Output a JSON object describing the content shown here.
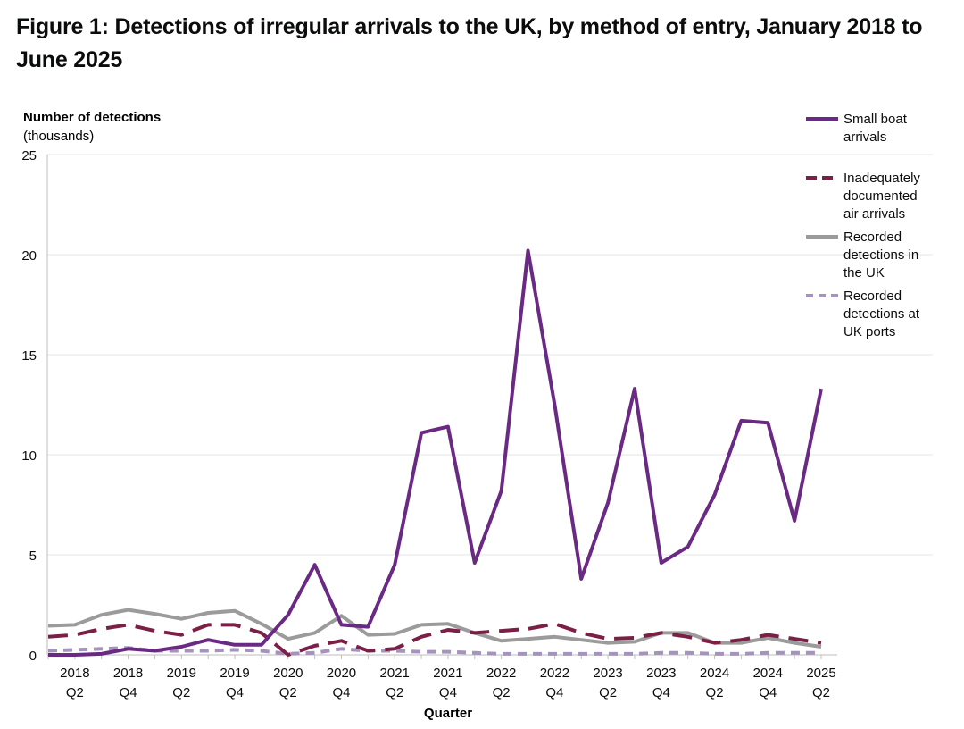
{
  "title": "Figure 1: Detections of irregular arrivals to the UK, by method of entry, January 2018 to June 2025",
  "chart_data": {
    "type": "line",
    "ylabel": "Number of detections",
    "ylabel_sub": "(thousands)",
    "xlabel": "Quarter",
    "ylim": [
      0,
      25
    ],
    "yticks": [
      0,
      5,
      10,
      15,
      20,
      25
    ],
    "grid": "horizontal",
    "legend_position": "right",
    "x": [
      "2018 Q1",
      "2018 Q2",
      "2018 Q3",
      "2018 Q4",
      "2019 Q1",
      "2019 Q2",
      "2019 Q3",
      "2019 Q4",
      "2020 Q1",
      "2020 Q2",
      "2020 Q3",
      "2020 Q4",
      "2021 Q1",
      "2021 Q2",
      "2021 Q3",
      "2021 Q4",
      "2022 Q1",
      "2022 Q2",
      "2022 Q3",
      "2022 Q4",
      "2023 Q1",
      "2023 Q2",
      "2023 Q3",
      "2023 Q4",
      "2024 Q1",
      "2024 Q2",
      "2024 Q3",
      "2024 Q4",
      "2025 Q1",
      "2025 Q2"
    ],
    "xtick_labels": [
      {
        "year": "2018",
        "q": "Q2",
        "index": 1
      },
      {
        "year": "2018",
        "q": "Q4",
        "index": 3
      },
      {
        "year": "2019",
        "q": "Q2",
        "index": 5
      },
      {
        "year": "2019",
        "q": "Q4",
        "index": 7
      },
      {
        "year": "2020",
        "q": "Q2",
        "index": 9
      },
      {
        "year": "2020",
        "q": "Q4",
        "index": 11
      },
      {
        "year": "2021",
        "q": "Q2",
        "index": 13
      },
      {
        "year": "2021",
        "q": "Q4",
        "index": 15
      },
      {
        "year": "2022",
        "q": "Q2",
        "index": 17
      },
      {
        "year": "2022",
        "q": "Q4",
        "index": 19
      },
      {
        "year": "2023",
        "q": "Q2",
        "index": 21
      },
      {
        "year": "2023",
        "q": "Q4",
        "index": 23
      },
      {
        "year": "2024",
        "q": "Q2",
        "index": 25
      },
      {
        "year": "2024",
        "q": "Q4",
        "index": 27
      },
      {
        "year": "2025",
        "q": "Q2",
        "index": 29
      }
    ],
    "series": [
      {
        "name": "Small boat arrivals",
        "legend_lines": [
          "Small boat",
          "arrivals"
        ],
        "color": "#6a2a83",
        "dash": "solid",
        "values": [
          0.0,
          0.0,
          0.05,
          0.3,
          0.2,
          0.4,
          0.75,
          0.5,
          0.5,
          2.0,
          4.5,
          1.5,
          1.4,
          4.5,
          11.1,
          11.4,
          4.6,
          8.2,
          20.2,
          12.5,
          3.8,
          7.6,
          13.3,
          4.6,
          5.4,
          8.0,
          11.7,
          11.6,
          6.7,
          13.3
        ]
      },
      {
        "name": "Inadequately documented air arrivals",
        "legend_lines": [
          "Inadequately",
          "documented",
          "air arrivals"
        ],
        "color": "#7a1f45",
        "dash": "long",
        "values": [
          0.9,
          1.0,
          1.3,
          1.5,
          1.2,
          1.0,
          1.5,
          1.5,
          1.1,
          0.0,
          0.45,
          0.7,
          0.2,
          0.3,
          0.9,
          1.25,
          1.1,
          1.2,
          1.3,
          1.55,
          1.1,
          0.8,
          0.85,
          1.1,
          0.9,
          0.6,
          0.75,
          1.0,
          0.8,
          0.6
        ]
      },
      {
        "name": "Recorded detections in the UK",
        "legend_lines": [
          "Recorded",
          "detections in",
          "the UK"
        ],
        "color": "#9b9b9b",
        "dash": "solid",
        "values": [
          1.45,
          1.5,
          2.0,
          2.25,
          2.05,
          1.8,
          2.1,
          2.2,
          1.55,
          0.8,
          1.1,
          1.95,
          1.0,
          1.05,
          1.5,
          1.55,
          1.1,
          0.7,
          0.8,
          0.9,
          0.75,
          0.6,
          0.65,
          1.1,
          1.1,
          0.6,
          0.6,
          0.85,
          0.6,
          0.4
        ]
      },
      {
        "name": "Recorded detections at UK ports",
        "legend_lines": [
          "Recorded",
          "detections at",
          "UK ports"
        ],
        "color": "#a693bd",
        "dash": "short",
        "values": [
          0.2,
          0.25,
          0.3,
          0.35,
          0.2,
          0.2,
          0.2,
          0.25,
          0.2,
          0.05,
          0.1,
          0.3,
          0.2,
          0.2,
          0.15,
          0.15,
          0.1,
          0.05,
          0.05,
          0.05,
          0.05,
          0.05,
          0.05,
          0.1,
          0.1,
          0.05,
          0.05,
          0.1,
          0.1,
          0.1
        ]
      }
    ]
  }
}
